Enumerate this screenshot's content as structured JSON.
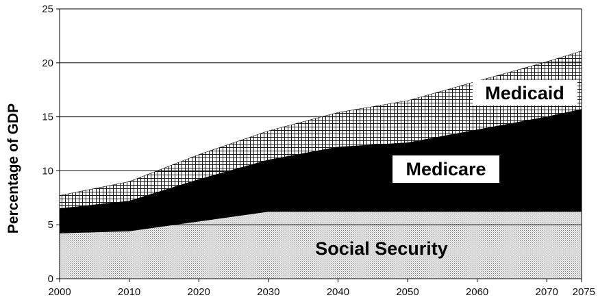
{
  "chart_data": {
    "type": "area",
    "stacked": true,
    "title": "",
    "xlabel": "",
    "ylabel": "Percentage of GDP",
    "xlim": [
      2000,
      2075
    ],
    "ylim": [
      0,
      25
    ],
    "xticks": [
      2000,
      2010,
      2020,
      2030,
      2040,
      2050,
      2060,
      2070,
      2075
    ],
    "yticks": [
      0,
      5,
      10,
      15,
      20,
      25
    ],
    "grid": "horizontal",
    "x": [
      2000,
      2010,
      2020,
      2030,
      2040,
      2050,
      2060,
      2070,
      2075
    ],
    "series": [
      {
        "name": "Social Security",
        "values": [
          4.2,
          4.4,
          5.3,
          6.2,
          6.2,
          6.2,
          6.2,
          6.2,
          6.2
        ],
        "color": "#d9d9d9",
        "pattern": "stipple"
      },
      {
        "name": "Medicare",
        "values": [
          2.3,
          2.8,
          3.9,
          4.8,
          6.0,
          6.4,
          7.6,
          8.8,
          9.5
        ],
        "color": "#000000",
        "pattern": "solid"
      },
      {
        "name": "Medicaid",
        "values": [
          1.2,
          1.8,
          2.3,
          2.7,
          3.2,
          3.9,
          4.5,
          5.1,
          5.4
        ],
        "color": "#ffffff",
        "pattern": "crosshatch"
      }
    ]
  }
}
